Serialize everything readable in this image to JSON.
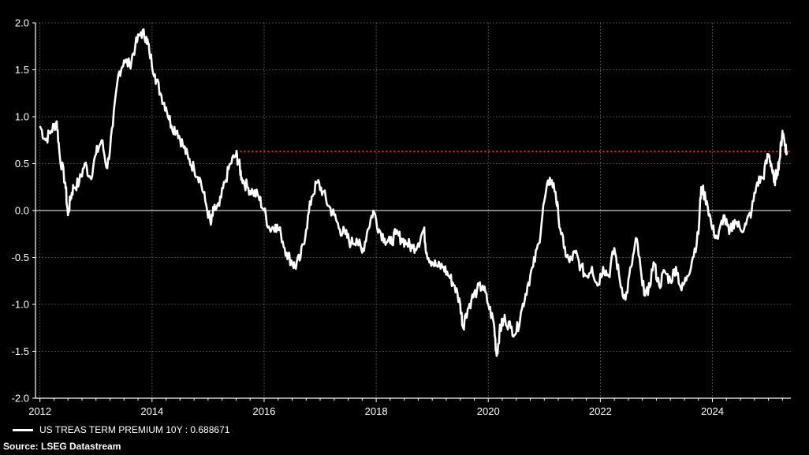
{
  "chart_data": {
    "type": "line",
    "title": "",
    "xlabel": "",
    "ylabel": "",
    "xlim": [
      2011.92,
      2025.4
    ],
    "ylim": [
      -2.0,
      2.0
    ],
    "x_ticks": [
      2012,
      2014,
      2016,
      2018,
      2020,
      2022,
      2024
    ],
    "x_tick_labels": [
      "2012",
      "2014",
      "2016",
      "2018",
      "2020",
      "2022",
      "2024"
    ],
    "y_ticks": [
      -2.0,
      -1.5,
      -1.0,
      -0.5,
      0.0,
      0.5,
      1.0,
      1.5,
      2.0
    ],
    "y_tick_labels": [
      "-2.0",
      "-1.5",
      "-1.0",
      "-0.5",
      "0.0",
      "0.5",
      "1.0",
      "1.5",
      "2.0"
    ],
    "grid": true,
    "zero_line": true,
    "background": "#000000",
    "series": [
      {
        "name": "US TREAS TERM PREMIUM 10Y",
        "color": "#ffffff",
        "x": [
          2012.0,
          2012.1,
          2012.2,
          2012.3,
          2012.35,
          2012.45,
          2012.5,
          2012.55,
          2012.6,
          2012.7,
          2012.8,
          2012.9,
          2013.0,
          2013.1,
          2013.2,
          2013.3,
          2013.4,
          2013.5,
          2013.6,
          2013.7,
          2013.8,
          2013.9,
          2013.95,
          2014.05,
          2014.15,
          2014.25,
          2014.35,
          2014.45,
          2014.55,
          2014.65,
          2014.75,
          2014.85,
          2014.95,
          2015.05,
          2015.1,
          2015.2,
          2015.3,
          2015.4,
          2015.5,
          2015.55,
          2015.6,
          2015.7,
          2015.8,
          2015.9,
          2016.0,
          2016.1,
          2016.2,
          2016.3,
          2016.4,
          2016.5,
          2016.55,
          2016.65,
          2016.75,
          2016.85,
          2016.95,
          2017.05,
          2017.15,
          2017.25,
          2017.35,
          2017.45,
          2017.55,
          2017.65,
          2017.75,
          2017.85,
          2017.95,
          2018.05,
          2018.15,
          2018.25,
          2018.35,
          2018.45,
          2018.55,
          2018.65,
          2018.75,
          2018.85,
          2018.9,
          2019.0,
          2019.1,
          2019.2,
          2019.3,
          2019.4,
          2019.5,
          2019.55,
          2019.6,
          2019.7,
          2019.8,
          2019.9,
          2020.0,
          2020.1,
          2020.15,
          2020.2,
          2020.25,
          2020.3,
          2020.4,
          2020.5,
          2020.6,
          2020.7,
          2020.8,
          2020.9,
          2021.0,
          2021.1,
          2021.2,
          2021.25,
          2021.35,
          2021.45,
          2021.55,
          2021.65,
          2021.75,
          2021.85,
          2021.95,
          2022.05,
          2022.15,
          2022.25,
          2022.35,
          2022.45,
          2022.55,
          2022.65,
          2022.75,
          2022.85,
          2022.95,
          2023.05,
          2023.15,
          2023.25,
          2023.35,
          2023.45,
          2023.55,
          2023.65,
          2023.75,
          2023.8,
          2023.9,
          2024.0,
          2024.1,
          2024.2,
          2024.3,
          2024.4,
          2024.5,
          2024.6,
          2024.7,
          2024.8,
          2024.9,
          2025.0,
          2025.05,
          2025.1,
          2025.15,
          2025.2,
          2025.25,
          2025.3,
          2025.33
        ],
        "y": [
          0.9,
          0.75,
          0.85,
          0.95,
          0.6,
          0.3,
          -0.05,
          0.15,
          0.25,
          0.3,
          0.5,
          0.35,
          0.6,
          0.75,
          0.45,
          0.9,
          1.45,
          1.6,
          1.55,
          1.75,
          1.9,
          1.85,
          1.7,
          1.45,
          1.25,
          1.1,
          0.9,
          0.85,
          0.7,
          0.55,
          0.45,
          0.35,
          0.1,
          -0.15,
          0.0,
          0.05,
          0.3,
          0.5,
          0.6,
          0.5,
          0.35,
          0.25,
          0.2,
          0.15,
          0.0,
          -0.2,
          -0.15,
          -0.25,
          -0.45,
          -0.55,
          -0.6,
          -0.5,
          -0.2,
          0.15,
          0.3,
          0.2,
          0.05,
          -0.05,
          -0.2,
          -0.25,
          -0.35,
          -0.3,
          -0.45,
          -0.2,
          0.0,
          -0.2,
          -0.3,
          -0.35,
          -0.25,
          -0.3,
          -0.35,
          -0.4,
          -0.35,
          -0.2,
          -0.45,
          -0.55,
          -0.6,
          -0.6,
          -0.7,
          -0.8,
          -1.0,
          -1.25,
          -1.1,
          -0.95,
          -0.85,
          -0.8,
          -1.0,
          -1.2,
          -1.55,
          -1.3,
          -1.2,
          -1.15,
          -1.25,
          -1.3,
          -1.05,
          -0.8,
          -0.6,
          -0.35,
          0.1,
          0.35,
          0.2,
          -0.05,
          -0.4,
          -0.55,
          -0.45,
          -0.6,
          -0.7,
          -0.6,
          -0.8,
          -0.6,
          -0.7,
          -0.4,
          -0.75,
          -0.95,
          -0.6,
          -0.3,
          -0.8,
          -0.9,
          -0.55,
          -0.8,
          -0.65,
          -0.75,
          -0.6,
          -0.85,
          -0.7,
          -0.5,
          -0.25,
          0.25,
          0.1,
          -0.2,
          -0.3,
          -0.05,
          -0.25,
          -0.1,
          -0.2,
          -0.15,
          0.0,
          0.3,
          0.35,
          0.6,
          0.5,
          0.3,
          0.4,
          0.55,
          0.85,
          0.7,
          0.6
        ]
      }
    ],
    "reference_line": {
      "y": 0.63,
      "x_start": 2015.5,
      "x_end": 2025.4,
      "color": "#e8262a",
      "style": "dotted"
    },
    "legend": {
      "placement": "bottom-left",
      "label": "US TREAS TERM PREMIUM 10Y : 0.688671"
    },
    "source": "Source: LSEG Datastream"
  }
}
